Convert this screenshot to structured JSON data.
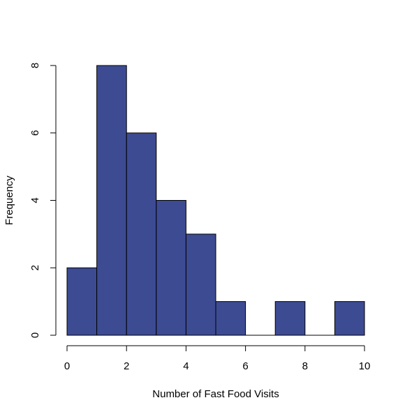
{
  "chart_data": {
    "type": "bar",
    "title": "",
    "xlabel": "Number of Fast Food Visits",
    "ylabel": "Frequency",
    "bins": [
      {
        "x0": 0,
        "x1": 1,
        "count": 2
      },
      {
        "x0": 1,
        "x1": 2,
        "count": 8
      },
      {
        "x0": 2,
        "x1": 3,
        "count": 6
      },
      {
        "x0": 3,
        "x1": 4,
        "count": 4
      },
      {
        "x0": 4,
        "x1": 5,
        "count": 3
      },
      {
        "x0": 5,
        "x1": 6,
        "count": 1
      },
      {
        "x0": 6,
        "x1": 7,
        "count": 0
      },
      {
        "x0": 7,
        "x1": 8,
        "count": 1
      },
      {
        "x0": 8,
        "x1": 9,
        "count": 0
      },
      {
        "x0": 9,
        "x1": 10,
        "count": 1
      }
    ],
    "xlim": [
      0,
      10
    ],
    "ylim": [
      0,
      8
    ],
    "x_ticks": [
      "0",
      "2",
      "4",
      "6",
      "8",
      "10"
    ],
    "y_ticks": [
      "0",
      "2",
      "4",
      "6",
      "8"
    ],
    "grid": false,
    "bar_color": "#3d4b93",
    "edge_color": "#000000"
  }
}
